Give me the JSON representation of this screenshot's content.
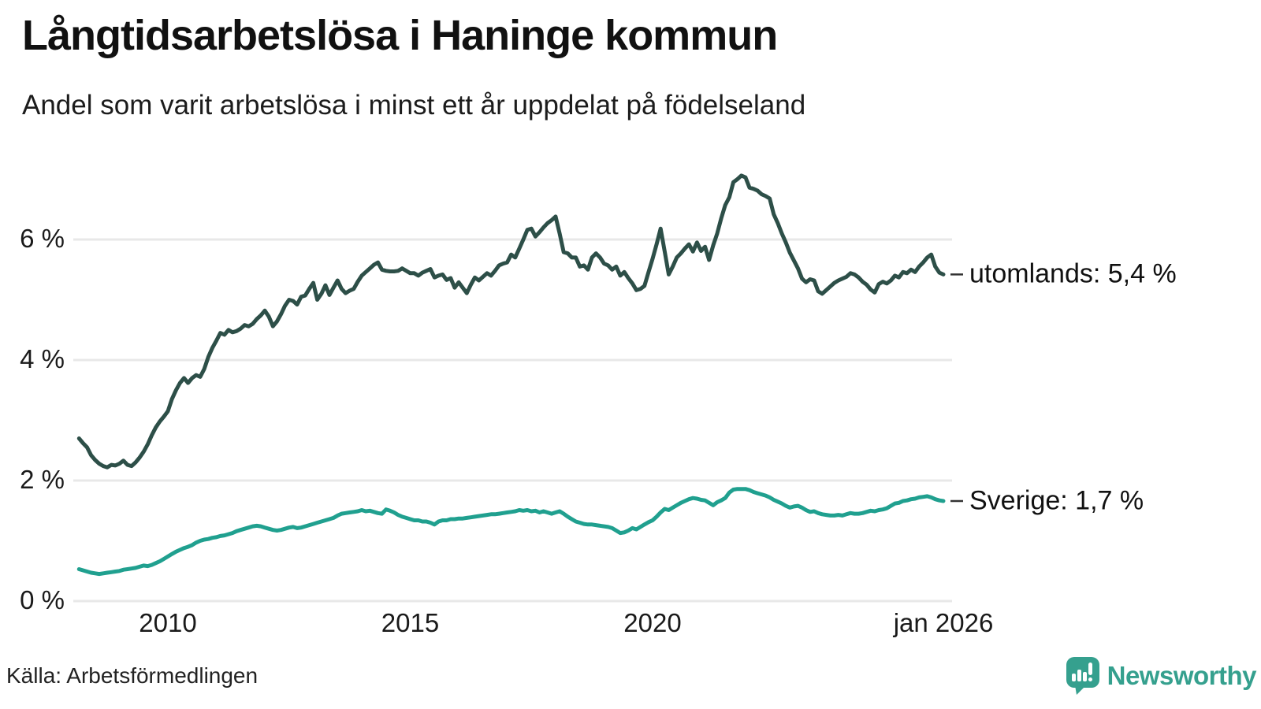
{
  "header": {
    "title": "Långtidsarbetslösa i Haninge kommun",
    "subtitle": "Andel som varit arbetslösa i minst ett år uppdelat på födelseland"
  },
  "footer": {
    "source": "Källa: Arbetsförmedlingen",
    "brand": "Newsworthy"
  },
  "colors": {
    "utomlands_line": "#2d4f48",
    "sverige_line": "#20a08f",
    "grid": "#e8e8e8",
    "leader_dash": "#333333",
    "text": "#1a1a1a",
    "brand": "#35a08e"
  },
  "chart_data": {
    "type": "line",
    "title": "Långtidsarbetslösa i Haninge kommun",
    "subtitle": "Andel som varit arbetslösa i minst ett år uppdelat på födelseland",
    "grid": true,
    "legend_position": "line-end-labels",
    "x_axis": {
      "range": [
        2008.17,
        2026.0
      ],
      "ticks": [
        {
          "label": "2010",
          "year": 2010
        },
        {
          "label": "2015",
          "year": 2015
        },
        {
          "label": "2020",
          "year": 2020
        },
        {
          "label": "jan 2026",
          "year": 2026
        }
      ]
    },
    "y_axis": {
      "unit": "%",
      "range": [
        0,
        7.3
      ],
      "ticks": [
        {
          "label": "0 %",
          "value": 0
        },
        {
          "label": "2 %",
          "value": 2
        },
        {
          "label": "4 %",
          "value": 4
        },
        {
          "label": "6 %",
          "value": 6
        }
      ]
    },
    "x_start": 2008.1667,
    "x_step": 0.083333,
    "series": [
      {
        "name": "utomlands",
        "end_label": "utomlands: 5,4 %",
        "last_value": "5,4 %",
        "color": "#2d4f48",
        "y": [
          2.7,
          2.62,
          2.55,
          2.42,
          2.34,
          2.28,
          2.24,
          2.22,
          2.26,
          2.25,
          2.28,
          2.33,
          2.26,
          2.24,
          2.3,
          2.38,
          2.48,
          2.6,
          2.75,
          2.88,
          2.98,
          3.06,
          3.15,
          3.35,
          3.5,
          3.62,
          3.7,
          3.62,
          3.7,
          3.75,
          3.72,
          3.85,
          4.05,
          4.2,
          4.32,
          4.45,
          4.42,
          4.5,
          4.46,
          4.48,
          4.52,
          4.58,
          4.56,
          4.6,
          4.68,
          4.74,
          4.82,
          4.72,
          4.56,
          4.64,
          4.76,
          4.9,
          5.0,
          4.98,
          4.92,
          5.05,
          5.07,
          5.18,
          5.28,
          5.0,
          5.1,
          5.24,
          5.08,
          5.2,
          5.32,
          5.18,
          5.11,
          5.15,
          5.18,
          5.3,
          5.4,
          5.46,
          5.52,
          5.58,
          5.62,
          5.5,
          5.48,
          5.47,
          5.47,
          5.48,
          5.52,
          5.48,
          5.44,
          5.44,
          5.4,
          5.45,
          5.48,
          5.51,
          5.37,
          5.4,
          5.42,
          5.33,
          5.36,
          5.2,
          5.29,
          5.2,
          5.11,
          5.25,
          5.37,
          5.32,
          5.38,
          5.44,
          5.4,
          5.48,
          5.57,
          5.6,
          5.62,
          5.75,
          5.7,
          5.85,
          6.0,
          6.16,
          6.18,
          6.05,
          6.12,
          6.2,
          6.27,
          6.32,
          6.38,
          6.1,
          5.79,
          5.77,
          5.7,
          5.7,
          5.55,
          5.57,
          5.5,
          5.7,
          5.77,
          5.7,
          5.6,
          5.57,
          5.5,
          5.55,
          5.4,
          5.46,
          5.36,
          5.27,
          5.16,
          5.18,
          5.23,
          5.46,
          5.68,
          5.92,
          6.18,
          5.8,
          5.42,
          5.55,
          5.7,
          5.77,
          5.85,
          5.92,
          5.8,
          5.95,
          5.81,
          5.88,
          5.66,
          5.9,
          6.1,
          6.35,
          6.57,
          6.7,
          6.95,
          7.0,
          7.06,
          7.03,
          6.86,
          6.84,
          6.81,
          6.75,
          6.72,
          6.68,
          6.42,
          6.27,
          6.1,
          5.95,
          5.78,
          5.65,
          5.52,
          5.35,
          5.29,
          5.34,
          5.32,
          5.14,
          5.1,
          5.16,
          5.22,
          5.28,
          5.32,
          5.35,
          5.38,
          5.44,
          5.42,
          5.37,
          5.3,
          5.25,
          5.17,
          5.12,
          5.26,
          5.3,
          5.27,
          5.32,
          5.4,
          5.37,
          5.46,
          5.44,
          5.5,
          5.46,
          5.55,
          5.62,
          5.7,
          5.75,
          5.55,
          5.45,
          5.42
        ]
      },
      {
        "name": "Sverige",
        "end_label": "Sverige: 1,7 %",
        "last_value": "1,7 %",
        "color": "#20a08f",
        "y": [
          0.53,
          0.51,
          0.49,
          0.47,
          0.46,
          0.45,
          0.46,
          0.47,
          0.48,
          0.49,
          0.5,
          0.52,
          0.53,
          0.54,
          0.55,
          0.57,
          0.59,
          0.58,
          0.6,
          0.63,
          0.66,
          0.7,
          0.74,
          0.78,
          0.82,
          0.85,
          0.88,
          0.9,
          0.93,
          0.97,
          1.0,
          1.02,
          1.03,
          1.05,
          1.06,
          1.08,
          1.09,
          1.11,
          1.13,
          1.16,
          1.18,
          1.2,
          1.22,
          1.24,
          1.25,
          1.24,
          1.22,
          1.2,
          1.18,
          1.17,
          1.18,
          1.2,
          1.22,
          1.23,
          1.21,
          1.22,
          1.24,
          1.26,
          1.28,
          1.3,
          1.32,
          1.34,
          1.36,
          1.38,
          1.42,
          1.45,
          1.46,
          1.47,
          1.48,
          1.49,
          1.51,
          1.49,
          1.5,
          1.48,
          1.46,
          1.45,
          1.52,
          1.5,
          1.47,
          1.43,
          1.4,
          1.38,
          1.36,
          1.34,
          1.34,
          1.32,
          1.32,
          1.3,
          1.27,
          1.32,
          1.34,
          1.34,
          1.36,
          1.36,
          1.37,
          1.37,
          1.38,
          1.39,
          1.4,
          1.41,
          1.42,
          1.43,
          1.44,
          1.44,
          1.45,
          1.46,
          1.47,
          1.48,
          1.49,
          1.51,
          1.5,
          1.51,
          1.49,
          1.5,
          1.47,
          1.49,
          1.47,
          1.45,
          1.47,
          1.49,
          1.45,
          1.4,
          1.36,
          1.32,
          1.3,
          1.28,
          1.27,
          1.27,
          1.26,
          1.25,
          1.24,
          1.23,
          1.21,
          1.17,
          1.13,
          1.14,
          1.17,
          1.21,
          1.19,
          1.23,
          1.27,
          1.31,
          1.34,
          1.4,
          1.47,
          1.53,
          1.51,
          1.55,
          1.59,
          1.63,
          1.66,
          1.69,
          1.71,
          1.7,
          1.68,
          1.67,
          1.63,
          1.59,
          1.64,
          1.67,
          1.71,
          1.8,
          1.85,
          1.86,
          1.86,
          1.86,
          1.84,
          1.81,
          1.79,
          1.77,
          1.75,
          1.72,
          1.68,
          1.65,
          1.62,
          1.58,
          1.55,
          1.57,
          1.58,
          1.55,
          1.51,
          1.48,
          1.49,
          1.46,
          1.44,
          1.43,
          1.42,
          1.42,
          1.43,
          1.42,
          1.44,
          1.46,
          1.45,
          1.45,
          1.46,
          1.48,
          1.5,
          1.49,
          1.51,
          1.52,
          1.54,
          1.58,
          1.62,
          1.63,
          1.66,
          1.67,
          1.69,
          1.7,
          1.72,
          1.73,
          1.74,
          1.72,
          1.69,
          1.67,
          1.66
        ]
      }
    ]
  }
}
